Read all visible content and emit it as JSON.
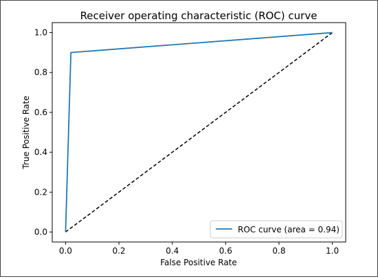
{
  "chart_data": {
    "type": "line",
    "title": "Receiver operating characteristic (ROC) curve",
    "xlabel": "False Positive Rate",
    "ylabel": "True Positive Rate",
    "xlim": [
      -0.05,
      1.05
    ],
    "ylim": [
      -0.05,
      1.05
    ],
    "xticks": [
      0.0,
      0.2,
      0.4,
      0.6,
      0.8,
      1.0
    ],
    "yticks": [
      0.0,
      0.2,
      0.4,
      0.6,
      0.8,
      1.0
    ],
    "xtick_labels": [
      "0.0",
      "0.2",
      "0.4",
      "0.6",
      "0.8",
      "1.0"
    ],
    "ytick_labels": [
      "0.0",
      "0.2",
      "0.4",
      "0.6",
      "0.8",
      "1.0"
    ],
    "grid": false,
    "legend_position": "lower-right",
    "series": [
      {
        "name": "ROC curve (area = 0.94)",
        "color": "#1f77b4",
        "style": "solid",
        "x": [
          0.0,
          0.02,
          1.0
        ],
        "y": [
          0.0,
          0.9,
          1.0
        ]
      },
      {
        "color": "#000000",
        "style": "dashed",
        "x": [
          0.0,
          1.0
        ],
        "y": [
          0.0,
          1.0
        ]
      }
    ]
  }
}
